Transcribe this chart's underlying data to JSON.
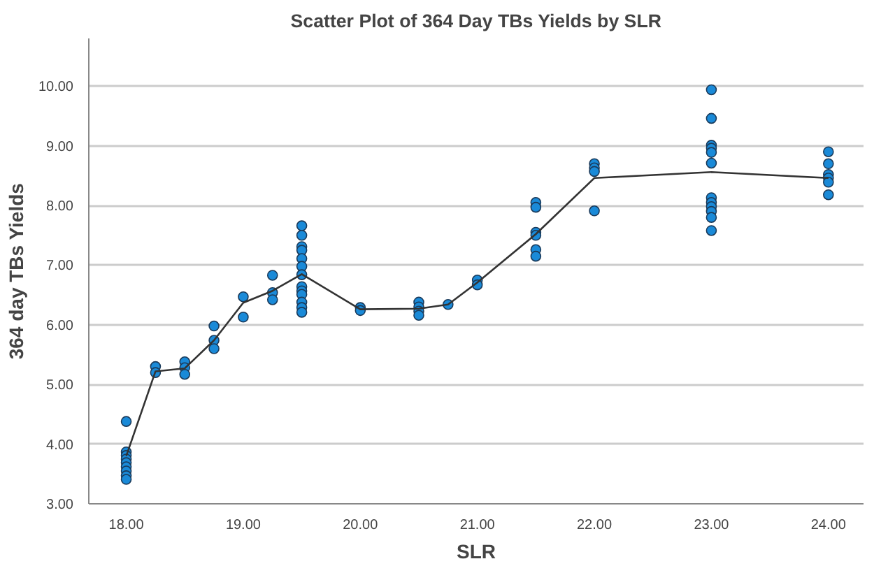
{
  "chart_data": {
    "type": "scatter",
    "title": "Scatter Plot of 364 Day TBs Yields by SLR",
    "xlabel": "SLR",
    "ylabel": "364 day TBs Yields",
    "xlim": [
      17.68,
      24.3
    ],
    "ylim": [
      3.0,
      10.8
    ],
    "xticks": [
      {
        "value": 18,
        "label": "18.00"
      },
      {
        "value": 19,
        "label": "19.00"
      },
      {
        "value": 20,
        "label": "20.00"
      },
      {
        "value": 21,
        "label": "21.00"
      },
      {
        "value": 22,
        "label": "22.00"
      },
      {
        "value": 23,
        "label": "23.00"
      },
      {
        "value": 24,
        "label": "24.00"
      }
    ],
    "yticks": [
      {
        "value": 3,
        "label": "3.00"
      },
      {
        "value": 4,
        "label": "4.00"
      },
      {
        "value": 5,
        "label": "5.00"
      },
      {
        "value": 6,
        "label": "6.00"
      },
      {
        "value": 7,
        "label": "7.00"
      },
      {
        "value": 8,
        "label": "8.00"
      },
      {
        "value": 9,
        "label": "9.00"
      },
      {
        "value": 10,
        "label": "10.00"
      }
    ],
    "grid": "y",
    "marker": "circle",
    "series": [
      {
        "color": "#1a8ad8",
        "x": [
          18,
          18,
          18,
          18,
          18,
          18,
          18,
          18,
          18,
          18.25,
          18.25,
          18.5,
          18.5,
          18.5,
          18.75,
          18.75,
          18.75,
          19,
          19,
          19.25,
          19.25,
          19.25,
          19.5,
          19.5,
          19.5,
          19.5,
          19.5,
          19.5,
          19.5,
          19.5,
          19.5,
          19.5,
          19.5,
          19.5,
          19.5,
          20,
          20,
          20.5,
          20.5,
          20.5,
          20.5,
          20.75,
          21,
          21,
          21.5,
          21.5,
          21.5,
          21.5,
          21.5,
          21.5,
          22,
          22,
          22,
          22,
          23,
          23,
          23,
          23,
          23,
          23,
          23,
          23,
          23,
          23,
          23,
          23,
          24,
          24,
          24,
          24,
          24,
          24
        ],
        "values": [
          4.38,
          3.87,
          3.81,
          3.75,
          3.69,
          3.62,
          3.55,
          3.47,
          3.41,
          5.3,
          5.2,
          5.38,
          5.28,
          5.17,
          5.98,
          5.74,
          5.6,
          6.47,
          6.13,
          6.83,
          6.54,
          6.42,
          7.66,
          7.5,
          7.31,
          7.25,
          7.11,
          6.98,
          6.84,
          6.64,
          6.57,
          6.51,
          6.38,
          6.29,
          6.21,
          6.29,
          6.24,
          6.38,
          6.3,
          6.23,
          6.16,
          6.34,
          6.75,
          6.67,
          8.05,
          7.97,
          7.55,
          7.5,
          7.26,
          7.15,
          8.7,
          8.63,
          8.57,
          7.91,
          9.94,
          9.46,
          9.01,
          8.96,
          8.89,
          8.71,
          8.13,
          8.05,
          7.98,
          7.9,
          7.8,
          7.58,
          8.9,
          8.7,
          8.52,
          8.46,
          8.39,
          8.18
        ]
      },
      {
        "type": "line",
        "color": "#333333",
        "marker": "none",
        "line_style": "solid",
        "x": [
          18,
          18.25,
          18.5,
          18.75,
          19,
          19.25,
          19.5,
          20,
          20.5,
          20.75,
          21,
          21.5,
          22,
          23,
          24
        ],
        "values": [
          3.8,
          5.22,
          5.27,
          5.74,
          6.37,
          6.57,
          6.85,
          6.26,
          6.27,
          6.34,
          6.71,
          7.52,
          8.46,
          8.56,
          8.46
        ]
      }
    ]
  }
}
